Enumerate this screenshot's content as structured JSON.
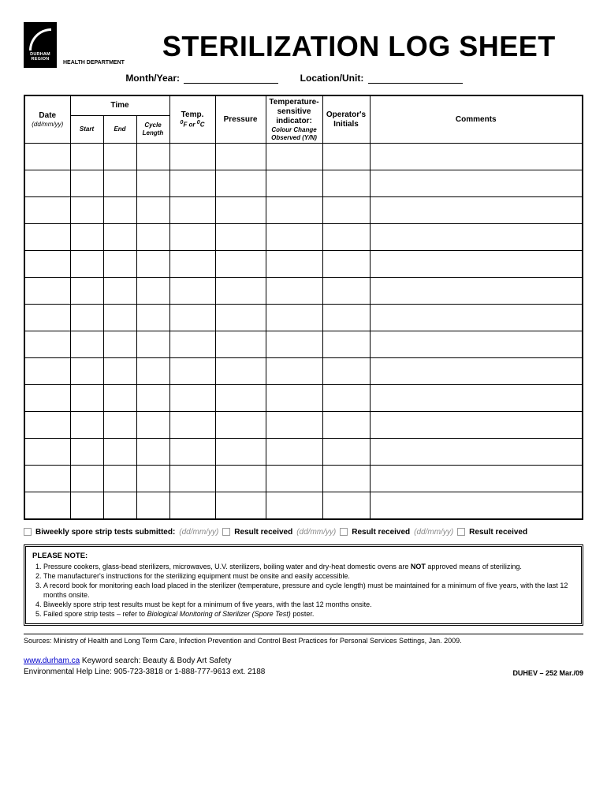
{
  "logo": {
    "line1": "DURHAM",
    "line2": "REGION",
    "dept": "HEALTH DEPARTMENT"
  },
  "title": "STERILIZATION LOG SHEET",
  "form_labels": {
    "month_year": "Month/Year:",
    "location": "Location/Unit:"
  },
  "table_headers": {
    "date": "Date",
    "date_sub": "(dd/mm/yy)",
    "time": "Time",
    "start": "Start",
    "end": "End",
    "cycle": "Cycle Length",
    "temp": "Temp.",
    "temp_sub_html": "<sup>0</sup>F or <sup>0</sup>C",
    "pressure": "Pressure",
    "indicator": "Temperature-sensitive indicator:",
    "indicator_sub": "Colour Change Observed (Y/N)",
    "initials": "Operator's Initials",
    "comments": "Comments"
  },
  "data_rows": 14,
  "biweekly": {
    "label": "Biweekly spore strip tests submitted:",
    "placeholder": "(dd/mm/yy)",
    "result": "Result received"
  },
  "notes": {
    "title": "PLEASE NOTE:",
    "items": [
      "Pressure cookers, glass-bead sterilizers, microwaves, U.V. sterilizers, boiling water and dry-heat domestic ovens are <b>NOT</b> approved means of sterilizing.",
      "The manufacturer's instructions for the sterilizing equipment must be onsite and easily accessible.",
      "A record book for monitoring each load placed in the sterilizer (temperature, pressure and cycle length) must be maintained for a minimum of five years, with the last 12 months onsite.",
      "Biweekly spore strip test results must be kept for a minimum of five years, with the last 12 months onsite.",
      "Failed spore strip tests – refer to <i>Biological Monitoring of Sterilizer (Spore Test)</i> poster."
    ]
  },
  "sources": "Sources:  Ministry of Health and Long Term Care, Infection Prevention and Control Best Practices for Personal Services Settings, Jan. 2009.",
  "footer": {
    "link": "www.durham.ca",
    "keyword": " Keyword search:  Beauty & Body Art Safety",
    "helpline": "Environmental Help Line:  905-723-3818 or 1-888-777-9613 ext. 2188",
    "code": "DUHEV – 252  Mar./09"
  }
}
